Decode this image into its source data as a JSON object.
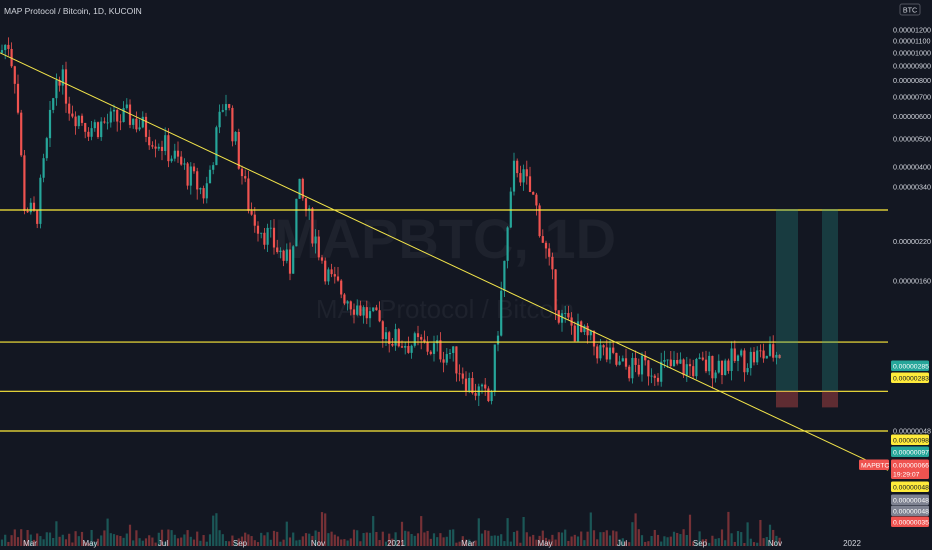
{
  "header": {
    "symbol_title": "MAP Protocol / Bitcoin, 1D, KUCOIN",
    "currency_badge": "BTC"
  },
  "watermark": {
    "ticker": "MAPBTC, 1D",
    "name": "MAP Protocol / Bitcoin"
  },
  "colors": {
    "background": "#131722",
    "up": "#26a69a",
    "down": "#ef5350",
    "trendline": "#f2e44a",
    "level_line": "#ffeb3b",
    "axis_text": "#d1d4dc"
  },
  "chart_data": {
    "type": "candlestick",
    "title": "MAP Protocol / Bitcoin, 1D, KUCOIN",
    "symbol": "MAPBTC",
    "ylabel": "BTC",
    "ylim": [
      2e-07,
      1.25e-05
    ],
    "y_scale": "log",
    "x_tick_labels": [
      "Mar",
      "May",
      "Jul",
      "Sep",
      "Nov",
      "2021",
      "Mar",
      "May",
      "Jul",
      "Sep",
      "Nov",
      "2022"
    ],
    "y_tick_labels": [
      "0.00001200",
      "0.00001100",
      "0.00001000",
      "0.00000900",
      "0.00000800",
      "0.00000700",
      "0.00000600",
      "0.00000500",
      "0.00000400",
      "0.00000340",
      "0.00000220",
      "0.00000160",
      "0.00000048"
    ],
    "price_path": [
      {
        "x": "Mar 2020",
        "y": 1e-05
      },
      {
        "x": "early Mar 2020",
        "y": 1.1e-05
      },
      {
        "x": "mid Mar 2020",
        "y": 8e-06
      },
      {
        "x": "late Mar 2020",
        "y": 3e-06
      },
      {
        "x": "early Apr 2020",
        "y": 2.6e-06
      },
      {
        "x": "mid Apr 2020",
        "y": 9e-06
      },
      {
        "x": "late Apr 2020",
        "y": 6.5e-06
      },
      {
        "x": "May 2020",
        "y": 5.5e-06
      },
      {
        "x": "Jun 2020",
        "y": 6e-06
      },
      {
        "x": "Jul 2020",
        "y": 4.8e-06
      },
      {
        "x": "Aug 2020",
        "y": 3.2e-06
      },
      {
        "x": "late Aug 2020",
        "y": 7.2e-06
      },
      {
        "x": "Sep 2020",
        "y": 2.8e-06
      },
      {
        "x": "Oct 2020",
        "y": 1.8e-06
      },
      {
        "x": "mid Oct 2020",
        "y": 3.4e-06
      },
      {
        "x": "Nov 2020",
        "y": 1.6e-06
      },
      {
        "x": "Dec 2020",
        "y": 1e-06
      },
      {
        "x": "Jan 2021",
        "y": 9e-07
      },
      {
        "x": "Feb 2021",
        "y": 7e-07
      },
      {
        "x": "Mar 2021",
        "y": 6e-07
      },
      {
        "x": "Apr 2021",
        "y": 4.2e-06
      },
      {
        "x": "late Apr 2021",
        "y": 3e-06
      },
      {
        "x": "May 2021",
        "y": 1.2e-06
      },
      {
        "x": "Jul 2021",
        "y": 8e-07
      },
      {
        "x": "Sep 2021",
        "y": 8e-07
      },
      {
        "x": "Nov 2021",
        "y": 9e-07
      }
    ],
    "trendline": {
      "from": {
        "x": "Mar 2020",
        "y": 1e-05
      },
      "to": {
        "x": "2022",
        "y": 3.5e-07
      }
    },
    "horizontal_levels": [
      2.83e-06,
      9.8e-07,
      6.6e-07,
      4.8e-07
    ],
    "price_tags": [
      {
        "value": "0.00000285",
        "color": "#26a69a"
      },
      {
        "value": "0.00000283",
        "color": "#ffeb3b"
      },
      {
        "value": "0.00000098",
        "color": "#ffeb3b"
      },
      {
        "value": "0.00000097",
        "color": "#26a69a"
      },
      {
        "value": "0.00000066",
        "color": "#ef5350",
        "label": "MAPBTC"
      },
      {
        "value": "19:29:07",
        "color": "#ef5350"
      },
      {
        "value": "0.00000048",
        "color": "#ffeb3b"
      },
      {
        "value": "0.00000048",
        "color": "#7e8291"
      },
      {
        "value": "0.00000048",
        "color": "#7e8291"
      },
      {
        "value": "0.00000035",
        "color": "#ef5350"
      }
    ],
    "projection": {
      "target": 2.85e-06,
      "entry": 6.6e-07,
      "stop": 5.8e-07
    },
    "grid": false,
    "legend": "none"
  }
}
